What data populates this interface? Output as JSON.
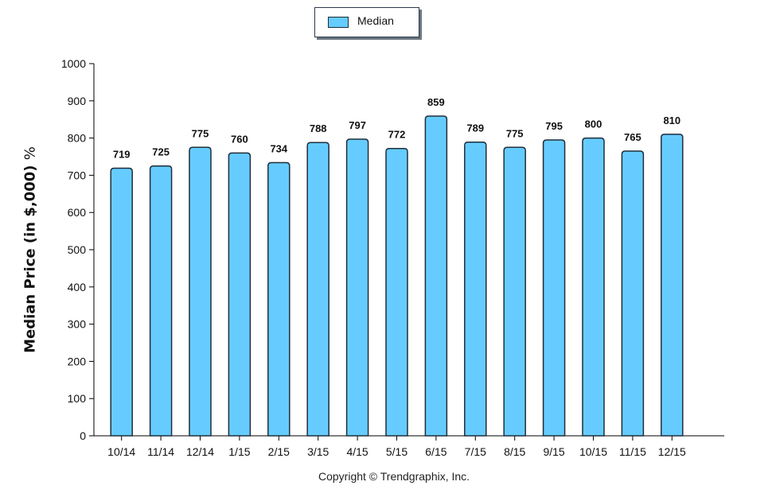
{
  "legend": {
    "label": "Median"
  },
  "footer": {
    "copyright": "Copyright © Trendgraphix, Inc."
  },
  "colors": {
    "bar": "#66ccff",
    "bar_stroke": "#1f2e3a",
    "axis": "#000000"
  },
  "chart_data": {
    "type": "bar",
    "title": "",
    "xlabel": "",
    "ylabel": "Median Price (in $,000)",
    "ylabel_unit": "%",
    "ylim": [
      0,
      1000
    ],
    "yticks": [
      0,
      100,
      200,
      300,
      400,
      500,
      600,
      700,
      800,
      900,
      1000
    ],
    "categories": [
      "10/14",
      "11/14",
      "12/14",
      "1/15",
      "2/15",
      "3/15",
      "4/15",
      "5/15",
      "6/15",
      "7/15",
      "8/15",
      "9/15",
      "10/15",
      "11/15",
      "12/15"
    ],
    "series": [
      {
        "name": "Median",
        "values": [
          719,
          725,
          775,
          760,
          734,
          788,
          797,
          772,
          859,
          789,
          775,
          795,
          800,
          765,
          810
        ]
      }
    ],
    "legend_position": "top-center",
    "grid": false
  }
}
